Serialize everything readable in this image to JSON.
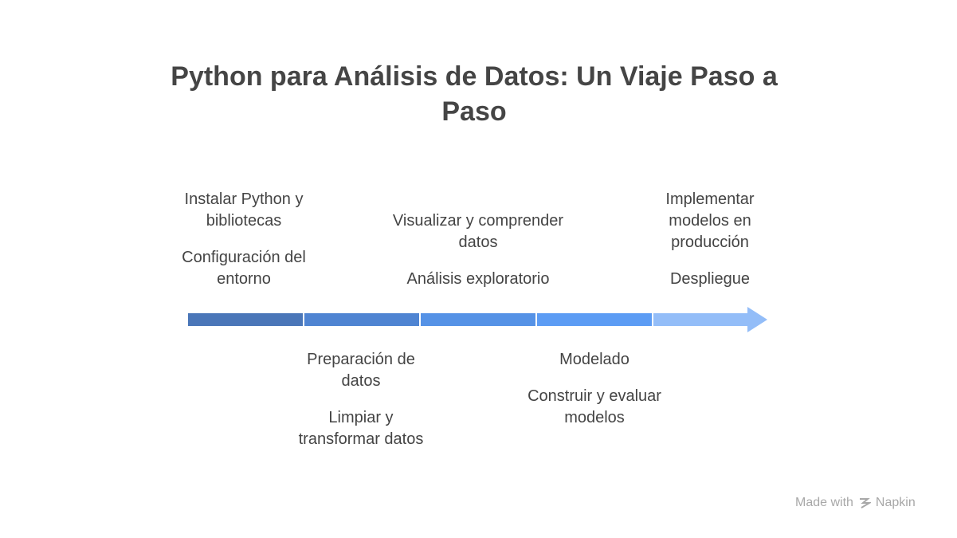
{
  "title": "Python para Análisis de Datos: Un Viaje Paso a Paso",
  "steps": [
    {
      "title": "Instalar Python y bibliotecas",
      "description": "Configuración del entorno"
    },
    {
      "title": "Preparación de datos",
      "description": "Limpiar y transformar datos"
    },
    {
      "title": "Visualizar y comprender datos",
      "description": "Análisis exploratorio"
    },
    {
      "title": "Modelado",
      "description": "Construir y evaluar modelos"
    },
    {
      "title": "Implementar modelos en producción",
      "description": "Despliegue"
    }
  ],
  "footer": {
    "prefix": "Made with",
    "brand": "Napkin"
  }
}
